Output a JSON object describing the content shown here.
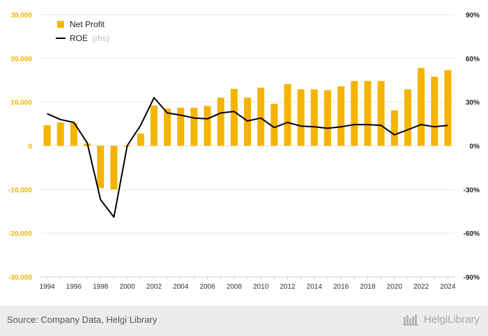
{
  "chart_data": {
    "type": "bar+line",
    "categories": [
      "1994",
      "1995",
      "1996",
      "1997",
      "1998",
      "1999",
      "2000",
      "2001",
      "2002",
      "2003",
      "2004",
      "2005",
      "2006",
      "2007",
      "2008",
      "2009",
      "2010",
      "2011",
      "2012",
      "2013",
      "2014",
      "2015",
      "2016",
      "2017",
      "2018",
      "2019",
      "2020",
      "2021",
      "2022",
      "2023",
      "2024"
    ],
    "series": [
      {
        "name": "Net Profit",
        "type": "bar",
        "axis": "left",
        "color": "#f5b400",
        "values": [
          4700,
          5300,
          5200,
          500,
          -9700,
          -10000,
          -200,
          2800,
          9200,
          8500,
          8700,
          8700,
          9100,
          11000,
          13000,
          11000,
          13300,
          9600,
          14100,
          12900,
          12900,
          12700,
          13600,
          14800,
          14800,
          14800,
          8100,
          12900,
          17800,
          15800,
          17300
        ]
      },
      {
        "name": "ROE",
        "name_suffix": "(rhs)",
        "type": "line",
        "axis": "right",
        "color": "#000000",
        "values": [
          0.22,
          0.18,
          0.16,
          0.02,
          -0.37,
          -0.49,
          0.0,
          0.14,
          0.33,
          0.225,
          0.21,
          0.19,
          0.185,
          0.225,
          0.235,
          0.17,
          0.19,
          0.125,
          0.16,
          0.135,
          0.13,
          0.12,
          0.13,
          0.145,
          0.145,
          0.14,
          0.075,
          0.11,
          0.145,
          0.13,
          0.14
        ]
      }
    ],
    "y_left": {
      "ylim": [
        -30000,
        30000
      ],
      "ticks": [
        "-30,000",
        "-20,000",
        "-10,000",
        "0",
        "10,000",
        "20,000",
        "30,000"
      ]
    },
    "y_right": {
      "ylim": [
        -0.9,
        0.9
      ],
      "ticks": [
        "-90%",
        "-60%",
        "-30%",
        "0%",
        "30%",
        "60%",
        "90%"
      ]
    },
    "x_tick_labels": [
      "1994",
      "1996",
      "1998",
      "2000",
      "2002",
      "2004",
      "2006",
      "2008",
      "2010",
      "2012",
      "2014",
      "2016",
      "2018",
      "2020",
      "2022",
      "2024"
    ],
    "grid": true,
    "legend_placement": "top-left"
  },
  "footer": {
    "source": "Source: Company Data, Helgi Library",
    "brand": "HelgiLibrary"
  }
}
